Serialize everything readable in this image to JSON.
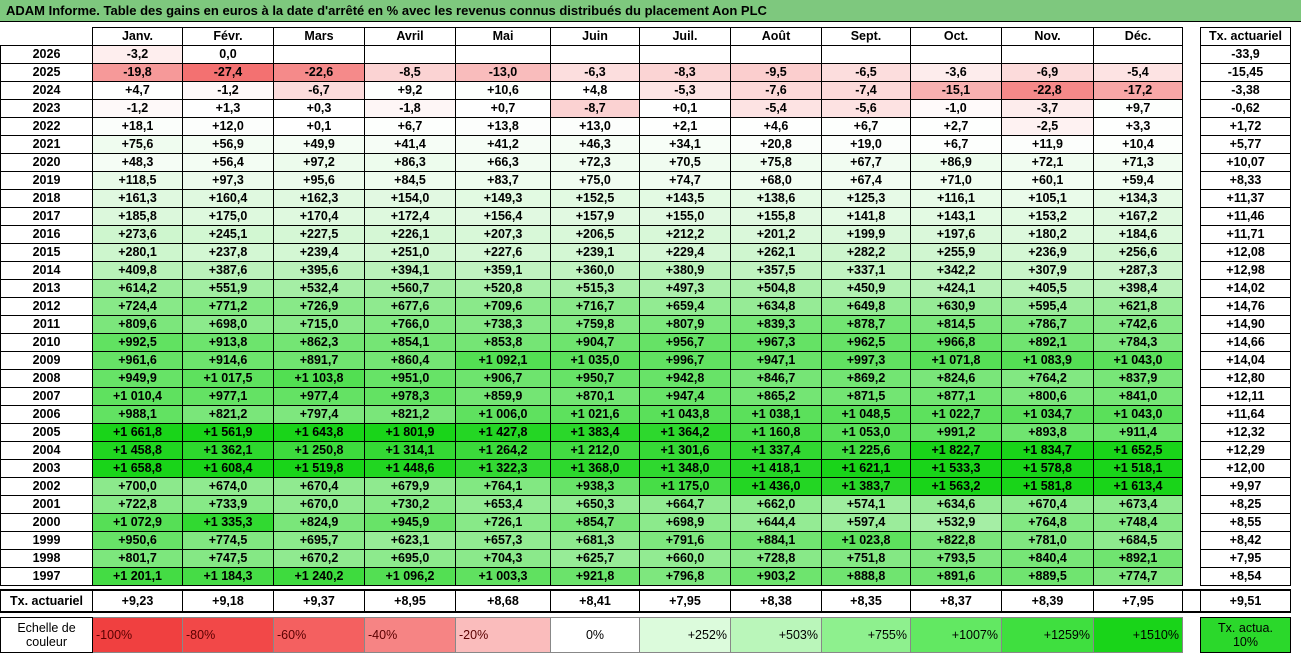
{
  "title": "ADAM Informe. Table des gains en euros à la date d'arrêté en % avec les revenus connus distribués du placement Aon PLC",
  "months": [
    "Janv.",
    "Févr.",
    "Mars",
    "Avril",
    "Mai",
    "Juin",
    "Juil.",
    "Août",
    "Sept.",
    "Oct.",
    "Nov.",
    "Déc."
  ],
  "tx_header": "Tx. actuariel",
  "chart_data": {
    "type": "table",
    "title": "ADAM Informe. Table des gains en euros à la date d'arrêté en % avec les revenus connus distribués du placement Aon PLC",
    "columns": [
      "Janv.",
      "Févr.",
      "Mars",
      "Avril",
      "Mai",
      "Juin",
      "Juil.",
      "Août",
      "Sept.",
      "Oct.",
      "Nov.",
      "Déc."
    ],
    "rows": [
      {
        "year": "2026",
        "cells": [
          "-3,2",
          "0,0",
          "",
          "",
          "",
          "",
          "",
          "",
          "",
          "",
          "",
          ""
        ],
        "values": [
          -3.2,
          0.0,
          null,
          null,
          null,
          null,
          null,
          null,
          null,
          null,
          null,
          null
        ],
        "tx": "-33,9"
      },
      {
        "year": "2025",
        "cells": [
          "-19,8",
          "-27,4",
          "-22,6",
          "-8,5",
          "-13,0",
          "-6,3",
          "-8,3",
          "-9,5",
          "-6,5",
          "-3,6",
          "-6,9",
          "-5,4"
        ],
        "values": [
          -19.8,
          -27.4,
          -22.6,
          -8.5,
          -13.0,
          -6.3,
          -8.3,
          -9.5,
          -6.5,
          -3.6,
          -6.9,
          -5.4
        ],
        "tx": "-15,45"
      },
      {
        "year": "2024",
        "cells": [
          "+4,7",
          "-1,2",
          "-6,7",
          "+9,2",
          "+10,6",
          "+4,8",
          "-5,3",
          "-7,6",
          "-7,4",
          "-15,1",
          "-22,8",
          "-17,2"
        ],
        "values": [
          4.7,
          -1.2,
          -6.7,
          9.2,
          10.6,
          4.8,
          -5.3,
          -7.6,
          -7.4,
          -15.1,
          -22.8,
          -17.2
        ],
        "tx": "-3,38"
      },
      {
        "year": "2023",
        "cells": [
          "-1,2",
          "+1,3",
          "+0,3",
          "-1,8",
          "+0,7",
          "-8,7",
          "+0,1",
          "-5,4",
          "-5,6",
          "-1,0",
          "-3,7",
          "+9,7"
        ],
        "values": [
          -1.2,
          1.3,
          0.3,
          -1.8,
          0.7,
          -8.7,
          0.1,
          -5.4,
          -5.6,
          -1.0,
          -3.7,
          9.7
        ],
        "tx": "-0,62"
      },
      {
        "year": "2022",
        "cells": [
          "+18,1",
          "+12,0",
          "+0,1",
          "+6,7",
          "+13,8",
          "+13,0",
          "+2,1",
          "+4,6",
          "+6,7",
          "+2,7",
          "-2,5",
          "+3,3"
        ],
        "values": [
          18.1,
          12.0,
          0.1,
          6.7,
          13.8,
          13.0,
          2.1,
          4.6,
          6.7,
          2.7,
          -2.5,
          3.3
        ],
        "tx": "+1,72"
      },
      {
        "year": "2021",
        "cells": [
          "+75,6",
          "+56,9",
          "+49,9",
          "+41,4",
          "+41,2",
          "+46,3",
          "+34,1",
          "+20,8",
          "+19,0",
          "+6,7",
          "+11,9",
          "+10,4"
        ],
        "values": [
          75.6,
          56.9,
          49.9,
          41.4,
          41.2,
          46.3,
          34.1,
          20.8,
          19.0,
          6.7,
          11.9,
          10.4
        ],
        "tx": "+5,77"
      },
      {
        "year": "2020",
        "cells": [
          "+48,3",
          "+56,4",
          "+97,2",
          "+86,3",
          "+66,3",
          "+72,3",
          "+70,5",
          "+75,8",
          "+67,7",
          "+86,9",
          "+72,1",
          "+71,3"
        ],
        "values": [
          48.3,
          56.4,
          97.2,
          86.3,
          66.3,
          72.3,
          70.5,
          75.8,
          67.7,
          86.9,
          72.1,
          71.3
        ],
        "tx": "+10,07"
      },
      {
        "year": "2019",
        "cells": [
          "+118,5",
          "+97,3",
          "+95,6",
          "+84,5",
          "+83,7",
          "+75,0",
          "+74,7",
          "+68,0",
          "+67,4",
          "+71,0",
          "+60,1",
          "+59,4"
        ],
        "values": [
          118.5,
          97.3,
          95.6,
          84.5,
          83.7,
          75.0,
          74.7,
          68.0,
          67.4,
          71.0,
          60.1,
          59.4
        ],
        "tx": "+8,33"
      },
      {
        "year": "2018",
        "cells": [
          "+161,3",
          "+160,4",
          "+162,3",
          "+154,0",
          "+149,3",
          "+152,5",
          "+143,5",
          "+138,6",
          "+125,3",
          "+116,1",
          "+105,1",
          "+134,3"
        ],
        "values": [
          161.3,
          160.4,
          162.3,
          154.0,
          149.3,
          152.5,
          143.5,
          138.6,
          125.3,
          116.1,
          105.1,
          134.3
        ],
        "tx": "+11,37"
      },
      {
        "year": "2017",
        "cells": [
          "+185,8",
          "+175,0",
          "+170,4",
          "+172,4",
          "+156,4",
          "+157,9",
          "+155,0",
          "+155,8",
          "+141,8",
          "+143,1",
          "+153,2",
          "+167,2"
        ],
        "values": [
          185.8,
          175.0,
          170.4,
          172.4,
          156.4,
          157.9,
          155.0,
          155.8,
          141.8,
          143.1,
          153.2,
          167.2
        ],
        "tx": "+11,46"
      },
      {
        "year": "2016",
        "cells": [
          "+273,6",
          "+245,1",
          "+227,5",
          "+226,1",
          "+207,3",
          "+206,5",
          "+212,2",
          "+201,2",
          "+199,9",
          "+197,6",
          "+180,2",
          "+184,6"
        ],
        "values": [
          273.6,
          245.1,
          227.5,
          226.1,
          207.3,
          206.5,
          212.2,
          201.2,
          199.9,
          197.6,
          180.2,
          184.6
        ],
        "tx": "+11,71"
      },
      {
        "year": "2015",
        "cells": [
          "+280,1",
          "+237,8",
          "+239,4",
          "+251,0",
          "+227,6",
          "+239,1",
          "+229,4",
          "+262,1",
          "+282,2",
          "+255,9",
          "+236,9",
          "+256,6"
        ],
        "values": [
          280.1,
          237.8,
          239.4,
          251.0,
          227.6,
          239.1,
          229.4,
          262.1,
          282.2,
          255.9,
          236.9,
          256.6
        ],
        "tx": "+12,08"
      },
      {
        "year": "2014",
        "cells": [
          "+409,8",
          "+387,6",
          "+395,6",
          "+394,1",
          "+359,1",
          "+360,0",
          "+380,9",
          "+357,5",
          "+337,1",
          "+342,2",
          "+307,9",
          "+287,3"
        ],
        "values": [
          409.8,
          387.6,
          395.6,
          394.1,
          359.1,
          360.0,
          380.9,
          357.5,
          337.1,
          342.2,
          307.9,
          287.3
        ],
        "tx": "+12,98"
      },
      {
        "year": "2013",
        "cells": [
          "+614,2",
          "+551,9",
          "+532,4",
          "+560,7",
          "+520,8",
          "+515,3",
          "+497,3",
          "+504,8",
          "+450,9",
          "+424,1",
          "+405,5",
          "+398,4"
        ],
        "values": [
          614.2,
          551.9,
          532.4,
          560.7,
          520.8,
          515.3,
          497.3,
          504.8,
          450.9,
          424.1,
          405.5,
          398.4
        ],
        "tx": "+14,02"
      },
      {
        "year": "2012",
        "cells": [
          "+724,4",
          "+771,2",
          "+726,9",
          "+677,6",
          "+709,6",
          "+716,7",
          "+659,4",
          "+634,8",
          "+649,8",
          "+630,9",
          "+595,4",
          "+621,8"
        ],
        "values": [
          724.4,
          771.2,
          726.9,
          677.6,
          709.6,
          716.7,
          659.4,
          634.8,
          649.8,
          630.9,
          595.4,
          621.8
        ],
        "tx": "+14,76"
      },
      {
        "year": "2011",
        "cells": [
          "+809,6",
          "+698,0",
          "+715,0",
          "+766,0",
          "+738,3",
          "+759,8",
          "+807,9",
          "+839,3",
          "+878,7",
          "+814,5",
          "+786,7",
          "+742,6"
        ],
        "values": [
          809.6,
          698.0,
          715.0,
          766.0,
          738.3,
          759.8,
          807.9,
          839.3,
          878.7,
          814.5,
          786.7,
          742.6
        ],
        "tx": "+14,90"
      },
      {
        "year": "2010",
        "cells": [
          "+992,5",
          "+913,8",
          "+862,3",
          "+854,1",
          "+853,8",
          "+904,7",
          "+956,7",
          "+967,3",
          "+962,5",
          "+966,8",
          "+892,1",
          "+784,3"
        ],
        "values": [
          992.5,
          913.8,
          862.3,
          854.1,
          853.8,
          904.7,
          956.7,
          967.3,
          962.5,
          966.8,
          892.1,
          784.3
        ],
        "tx": "+14,66"
      },
      {
        "year": "2009",
        "cells": [
          "+961,6",
          "+914,6",
          "+891,7",
          "+860,4",
          "+1 092,1",
          "+1 035,0",
          "+996,7",
          "+947,1",
          "+997,3",
          "+1 071,8",
          "+1 083,9",
          "+1 043,0"
        ],
        "values": [
          961.6,
          914.6,
          891.7,
          860.4,
          1092.1,
          1035.0,
          996.7,
          947.1,
          997.3,
          1071.8,
          1083.9,
          1043.0
        ],
        "tx": "+14,04"
      },
      {
        "year": "2008",
        "cells": [
          "+949,9",
          "+1 017,5",
          "+1 103,8",
          "+951,0",
          "+906,7",
          "+950,7",
          "+942,8",
          "+846,7",
          "+869,2",
          "+824,6",
          "+764,2",
          "+837,9"
        ],
        "values": [
          949.9,
          1017.5,
          1103.8,
          951.0,
          906.7,
          950.7,
          942.8,
          846.7,
          869.2,
          824.6,
          764.2,
          837.9
        ],
        "tx": "+12,80"
      },
      {
        "year": "2007",
        "cells": [
          "+1 010,4",
          "+977,1",
          "+977,4",
          "+978,3",
          "+859,9",
          "+870,1",
          "+947,4",
          "+865,2",
          "+871,5",
          "+877,1",
          "+800,6",
          "+841,0"
        ],
        "values": [
          1010.4,
          977.1,
          977.4,
          978.3,
          859.9,
          870.1,
          947.4,
          865.2,
          871.5,
          877.1,
          800.6,
          841.0
        ],
        "tx": "+12,11"
      },
      {
        "year": "2006",
        "cells": [
          "+988,1",
          "+821,2",
          "+797,4",
          "+821,2",
          "+1 006,0",
          "+1 021,6",
          "+1 043,8",
          "+1 038,1",
          "+1 048,5",
          "+1 022,7",
          "+1 034,7",
          "+1 043,0"
        ],
        "values": [
          988.1,
          821.2,
          797.4,
          821.2,
          1006.0,
          1021.6,
          1043.8,
          1038.1,
          1048.5,
          1022.7,
          1034.7,
          1043.0
        ],
        "tx": "+11,64"
      },
      {
        "year": "2005",
        "cells": [
          "+1 661,8",
          "+1 561,9",
          "+1 643,8",
          "+1 801,9",
          "+1 427,8",
          "+1 383,4",
          "+1 364,2",
          "+1 160,8",
          "+1 053,0",
          "+991,2",
          "+893,8",
          "+911,4"
        ],
        "values": [
          1661.8,
          1561.9,
          1643.8,
          1801.9,
          1427.8,
          1383.4,
          1364.2,
          1160.8,
          1053.0,
          991.2,
          893.8,
          911.4
        ],
        "tx": "+12,32"
      },
      {
        "year": "2004",
        "cells": [
          "+1 458,8",
          "+1 362,1",
          "+1 250,8",
          "+1 314,1",
          "+1 264,2",
          "+1 212,0",
          "+1 301,6",
          "+1 337,4",
          "+1 225,6",
          "+1 822,7",
          "+1 834,7",
          "+1 652,5"
        ],
        "values": [
          1458.8,
          1362.1,
          1250.8,
          1314.1,
          1264.2,
          1212.0,
          1301.6,
          1337.4,
          1225.6,
          1822.7,
          1834.7,
          1652.5
        ],
        "tx": "+12,29"
      },
      {
        "year": "2003",
        "cells": [
          "+1 658,8",
          "+1 608,4",
          "+1 519,8",
          "+1 448,6",
          "+1 322,3",
          "+1 368,0",
          "+1 348,0",
          "+1 418,1",
          "+1 621,1",
          "+1 533,3",
          "+1 578,8",
          "+1 518,1"
        ],
        "values": [
          1658.8,
          1608.4,
          1519.8,
          1448.6,
          1322.3,
          1368.0,
          1348.0,
          1418.1,
          1621.1,
          1533.3,
          1578.8,
          1518.1
        ],
        "tx": "+12,00"
      },
      {
        "year": "2002",
        "cells": [
          "+700,0",
          "+674,0",
          "+670,4",
          "+679,9",
          "+764,1",
          "+938,3",
          "+1 175,0",
          "+1 436,0",
          "+1 383,7",
          "+1 563,2",
          "+1 581,8",
          "+1 613,4"
        ],
        "values": [
          700.0,
          674.0,
          670.4,
          679.9,
          764.1,
          938.3,
          1175.0,
          1436.0,
          1383.7,
          1563.2,
          1581.8,
          1613.4
        ],
        "tx": "+9,97"
      },
      {
        "year": "2001",
        "cells": [
          "+722,8",
          "+733,9",
          "+670,0",
          "+730,2",
          "+653,4",
          "+650,3",
          "+664,7",
          "+662,0",
          "+574,1",
          "+634,6",
          "+670,4",
          "+673,4"
        ],
        "values": [
          722.8,
          733.9,
          670.0,
          730.2,
          653.4,
          650.3,
          664.7,
          662.0,
          574.1,
          634.6,
          670.4,
          673.4
        ],
        "tx": "+8,25"
      },
      {
        "year": "2000",
        "cells": [
          "+1 072,9",
          "+1 335,3",
          "+824,9",
          "+945,9",
          "+726,1",
          "+854,7",
          "+698,9",
          "+644,4",
          "+597,4",
          "+532,9",
          "+764,8",
          "+748,4"
        ],
        "values": [
          1072.9,
          1335.3,
          824.9,
          945.9,
          726.1,
          854.7,
          698.9,
          644.4,
          597.4,
          532.9,
          764.8,
          748.4
        ],
        "tx": "+8,55"
      },
      {
        "year": "1999",
        "cells": [
          "+950,6",
          "+774,5",
          "+695,7",
          "+623,1",
          "+657,3",
          "+681,3",
          "+791,6",
          "+884,1",
          "+1 023,8",
          "+822,8",
          "+781,0",
          "+684,5"
        ],
        "values": [
          950.6,
          774.5,
          695.7,
          623.1,
          657.3,
          681.3,
          791.6,
          884.1,
          1023.8,
          822.8,
          781.0,
          684.5
        ],
        "tx": "+8,42"
      },
      {
        "year": "1998",
        "cells": [
          "+801,7",
          "+747,5",
          "+670,2",
          "+695,0",
          "+704,3",
          "+625,7",
          "+660,0",
          "+728,8",
          "+751,8",
          "+793,5",
          "+840,4",
          "+892,1"
        ],
        "values": [
          801.7,
          747.5,
          670.2,
          695.0,
          704.3,
          625.7,
          660.0,
          728.8,
          751.8,
          793.5,
          840.4,
          892.1
        ],
        "tx": "+7,95"
      },
      {
        "year": "1997",
        "cells": [
          "+1 201,1",
          "+1 184,3",
          "+1 240,2",
          "+1 096,2",
          "+1 003,3",
          "+921,8",
          "+796,8",
          "+903,2",
          "+888,8",
          "+891,6",
          "+889,5",
          "+774,7"
        ],
        "values": [
          1201.1,
          1184.3,
          1240.2,
          1096.2,
          1003.3,
          921.8,
          796.8,
          903.2,
          888.8,
          891.6,
          889.5,
          774.7
        ],
        "tx": "+8,54"
      }
    ],
    "summary": {
      "label": "Tx. actuariel",
      "cells": [
        "+9,23",
        "+9,18",
        "+9,37",
        "+8,95",
        "+8,68",
        "+8,41",
        "+7,95",
        "+8,38",
        "+8,35",
        "+8,37",
        "+8,39",
        "+7,95"
      ],
      "tx": "+9,51"
    },
    "color_scale": {
      "label": "Echelle de couleur",
      "stops": [
        {
          "label": "-100%",
          "color": "#f04040"
        },
        {
          "label": "-80%",
          "color": "#f24848"
        },
        {
          "label": "-60%",
          "color": "#f46060"
        },
        {
          "label": "-40%",
          "color": "#f68484"
        },
        {
          "label": "-20%",
          "color": "#fabcbc"
        },
        {
          "label": "0%",
          "color": "#ffffff"
        },
        {
          "label": "+252%",
          "color": "#dcfbdc"
        },
        {
          "label": "+503%",
          "color": "#baf6ba"
        },
        {
          "label": "+755%",
          "color": "#8ef08e"
        },
        {
          "label": "+1007%",
          "color": "#62e862"
        },
        {
          "label": "+1259%",
          "color": "#3fdf3f"
        },
        {
          "label": "+1510%",
          "color": "#19d419"
        }
      ],
      "tx_label": "Tx. actua. 10%",
      "tx_color": "#2bd82b"
    }
  }
}
